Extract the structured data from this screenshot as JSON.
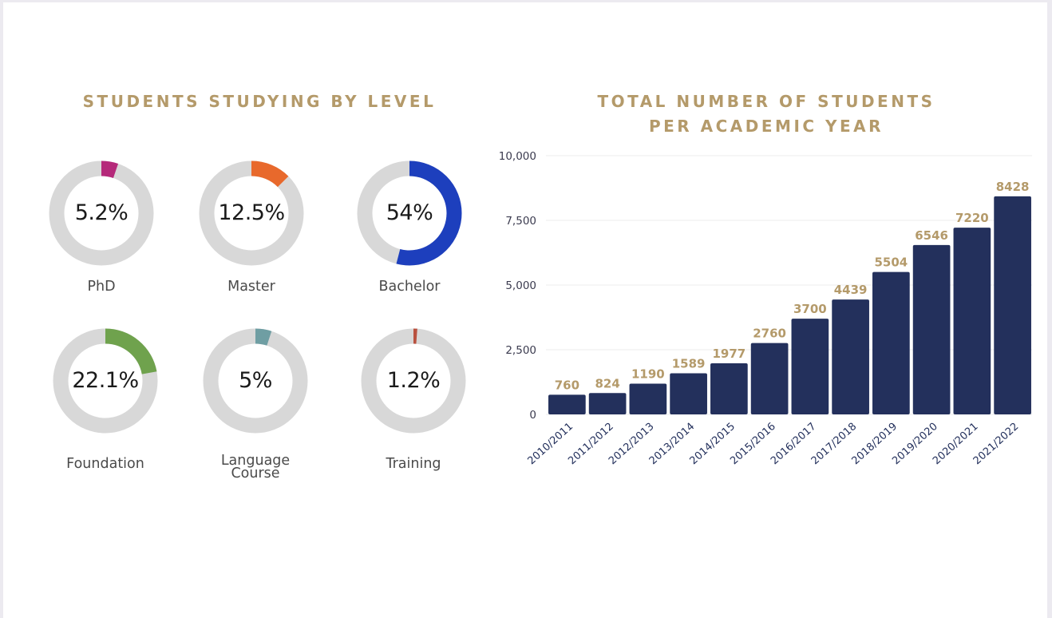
{
  "left_panel": {
    "title": "STUDENTS STUDYING BY LEVEL",
    "donuts": [
      {
        "label": "PhD",
        "value_text": "5.2%",
        "value": 5.2,
        "color": "#b5297a"
      },
      {
        "label": "Master",
        "value_text": "12.5%",
        "value": 12.5,
        "color": "#e8692c"
      },
      {
        "label": "Bachelor",
        "value_text": "54%",
        "value": 54,
        "color": "#1d3fbd"
      },
      {
        "label": "Foundation",
        "value_text": "22.1%",
        "value": 22.1,
        "color": "#6fa24d"
      },
      {
        "label": "Language\nCourse",
        "value_text": "5%",
        "value": 5,
        "color": "#6f9ea3"
      },
      {
        "label": "Training",
        "value_text": "1.2%",
        "value": 1.2,
        "color": "#b9513f"
      }
    ],
    "track_color": "#d8d8d8"
  },
  "chart_data": {
    "type": "bar",
    "title": "TOTAL NUMBER OF STUDENTS\nPER ACADEMIC YEAR",
    "categories": [
      "2010/2011",
      "2011/2012",
      "2012/2013",
      "2013/2014",
      "2014/2015",
      "2015/2016",
      "2016/2017",
      "2017/2018",
      "2018/2019",
      "2019/2020",
      "2020/2021",
      "2021/2022"
    ],
    "values": [
      760,
      824,
      1190,
      1589,
      1977,
      2760,
      3700,
      4439,
      5504,
      6546,
      7220,
      8428
    ],
    "ylim": [
      0,
      10000
    ],
    "yticks": [
      0,
      2500,
      5000,
      7500,
      10000
    ],
    "ytick_labels": [
      "0",
      "2,500",
      "5,000",
      "7,500",
      "10,000"
    ],
    "bar_color": "#23305c",
    "label_color": "#b49a6a",
    "grid": true
  }
}
